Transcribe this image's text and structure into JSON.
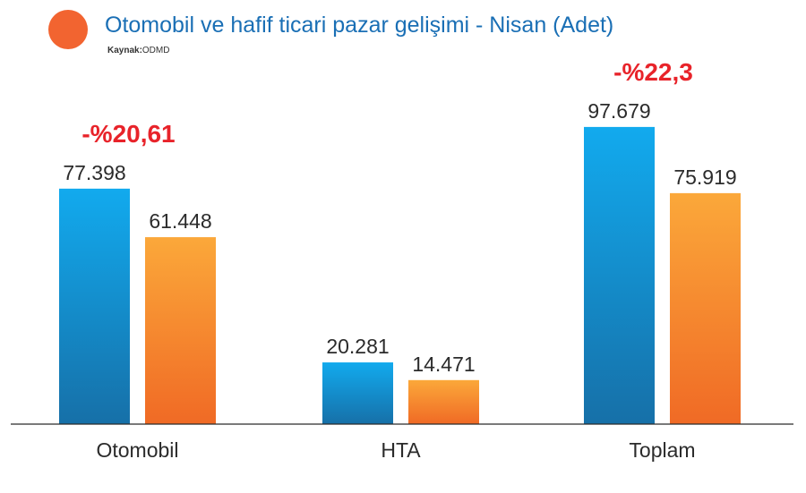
{
  "title": "Otomobil ve hafif ticari pazar gelişimi - Nisan (Adet)",
  "source_label": "Kaynak:",
  "source_value": "ODMD",
  "colors": {
    "accent_dot": "#f26430",
    "title": "#1a6fb5",
    "series_1_top": "#12aaee",
    "series_1_bottom": "#1670a8",
    "series_2_top": "#fba83a",
    "series_2_bottom": "#f06a25",
    "change_label": "#e8232a"
  },
  "chart_data": {
    "type": "bar",
    "categories": [
      "Otomobil",
      "HTA",
      "Toplam"
    ],
    "series": [
      {
        "values": [
          77398,
          20281,
          97679
        ],
        "labels": [
          "77.398",
          "20.281",
          "97.679"
        ]
      },
      {
        "values": [
          61448,
          14471,
          75919
        ],
        "labels": [
          "61.448",
          "14.471",
          "75.919"
        ]
      }
    ],
    "change_labels": [
      "-%20,61",
      "",
      "-%22,3"
    ],
    "ylim": [
      0,
      100000
    ],
    "grid": false,
    "legend": "none"
  }
}
